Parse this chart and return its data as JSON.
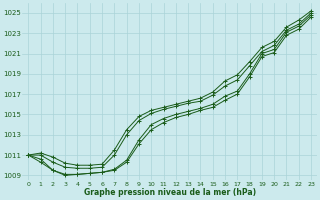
{
  "background_color": "#cceaed",
  "grid_color": "#aad4d8",
  "line_color": "#1a5c1a",
  "text_color": "#1a5c1a",
  "xlabel": "Graphe pression niveau de la mer (hPa)",
  "ylim": [
    1008.5,
    1026.0
  ],
  "xlim": [
    -0.5,
    23.5
  ],
  "yticks": [
    1009,
    1011,
    1013,
    1015,
    1017,
    1019,
    1021,
    1023,
    1025
  ],
  "xticks": [
    0,
    1,
    2,
    3,
    4,
    5,
    6,
    7,
    8,
    9,
    10,
    11,
    12,
    13,
    14,
    15,
    16,
    17,
    18,
    19,
    20,
    21,
    22,
    23
  ],
  "series": [
    [
      1011.0,
      1010.6,
      1009.5,
      1009.0,
      1009.1,
      1009.2,
      1009.3,
      1009.6,
      1010.5,
      1012.5,
      1014.0,
      1014.6,
      1015.0,
      1015.3,
      1015.6,
      1016.0,
      1016.8,
      1017.3,
      1019.0,
      1021.0,
      1021.4,
      1023.1,
      1023.7,
      1024.8
    ],
    [
      1011.0,
      1010.3,
      1009.5,
      1009.1,
      1009.1,
      1009.2,
      1009.3,
      1009.5,
      1010.3,
      1012.1,
      1013.5,
      1014.2,
      1014.7,
      1015.0,
      1015.4,
      1015.7,
      1016.4,
      1017.0,
      1018.7,
      1020.7,
      1021.1,
      1022.8,
      1023.4,
      1024.6
    ],
    [
      1011.0,
      1011.0,
      1010.3,
      1009.8,
      1009.7,
      1009.7,
      1009.8,
      1011.0,
      1013.0,
      1014.4,
      1015.1,
      1015.5,
      1015.8,
      1016.1,
      1016.3,
      1016.9,
      1017.8,
      1018.4,
      1019.8,
      1021.2,
      1021.8,
      1023.3,
      1023.9,
      1025.0
    ],
    [
      1011.0,
      1011.2,
      1010.8,
      1010.2,
      1010.0,
      1010.0,
      1010.1,
      1011.5,
      1013.5,
      1014.8,
      1015.4,
      1015.7,
      1016.0,
      1016.3,
      1016.6,
      1017.2,
      1018.3,
      1018.9,
      1020.2,
      1021.6,
      1022.2,
      1023.6,
      1024.3,
      1025.2
    ]
  ]
}
